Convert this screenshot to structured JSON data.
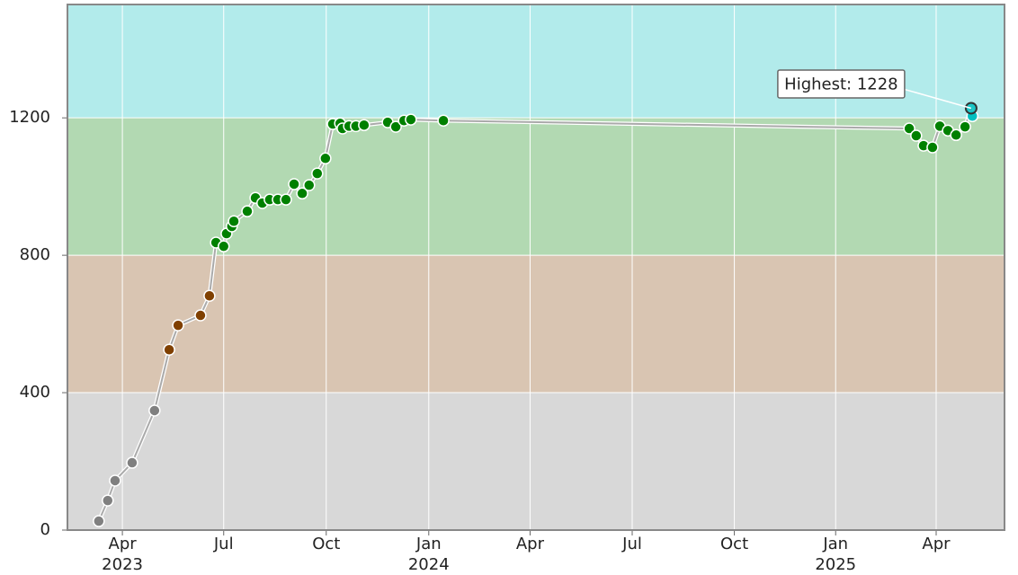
{
  "chart_data": {
    "type": "line",
    "x": [
      2023.189,
      2023.211,
      2023.229,
      2023.271,
      2023.326,
      2023.362,
      2023.384,
      2023.439,
      2023.461,
      2023.477,
      2023.496,
      2023.503,
      2023.516,
      2023.521,
      2023.554,
      2023.574,
      2023.591,
      2023.609,
      2023.629,
      2023.649,
      2023.669,
      2023.689,
      2023.706,
      2023.726,
      2023.746,
      2023.764,
      2023.782,
      2023.788,
      2023.804,
      2023.821,
      2023.841,
      2023.899,
      2023.919,
      2023.939,
      2023.956,
      2024.036,
      2025.181,
      2025.198,
      2025.216,
      2025.238,
      2025.256,
      2025.276,
      2025.296,
      2025.318,
      2025.333,
      2025.336
    ],
    "values": [
      26,
      86,
      144,
      196,
      348,
      525,
      596,
      625,
      682,
      837,
      826,
      863,
      884,
      899,
      928,
      967,
      952,
      962,
      962,
      962,
      1007,
      980,
      1004,
      1038,
      1082,
      1182,
      1184,
      1169,
      1176,
      1176,
      1179,
      1187,
      1174,
      1192,
      1195,
      1192,
      1169,
      1148,
      1119,
      1114,
      1176,
      1163,
      1150,
      1174,
      1228,
      1205
    ],
    "line_color": "#aaaaaa",
    "annotation": "Highest: 1228",
    "bands": [
      {
        "from": 0,
        "to": 400,
        "color": "#d8d8d8",
        "point_color": "#808080"
      },
      {
        "from": 400,
        "to": 800,
        "color": "#d9c5b2",
        "point_color": "#804000"
      },
      {
        "from": 800,
        "to": 1200,
        "color": "#b2d9b2",
        "point_color": "#008000"
      },
      {
        "from": 1200,
        "to": 1600,
        "color": "#b2ebeb",
        "point_color": "#00c0c0"
      }
    ],
    "xlim": [
      2023.112,
      2025.415
    ],
    "xticks": [
      {
        "value": 2023.247,
        "label": "Apr",
        "year": "2023"
      },
      {
        "value": 2023.496,
        "label": "Jul"
      },
      {
        "value": 2023.748,
        "label": "Oct"
      },
      {
        "value": 2024.0,
        "label": "Jan",
        "year": "2024"
      },
      {
        "value": 2024.249,
        "label": "Apr"
      },
      {
        "value": 2024.5,
        "label": "Jul"
      },
      {
        "value": 2024.751,
        "label": "Oct"
      },
      {
        "value": 2025.0,
        "label": "Jan",
        "year": "2025"
      },
      {
        "value": 2025.247,
        "label": "Apr"
      }
    ],
    "ylim": [
      0,
      1530
    ],
    "yticks": [
      0,
      400,
      800,
      1200
    ],
    "grid": true
  }
}
